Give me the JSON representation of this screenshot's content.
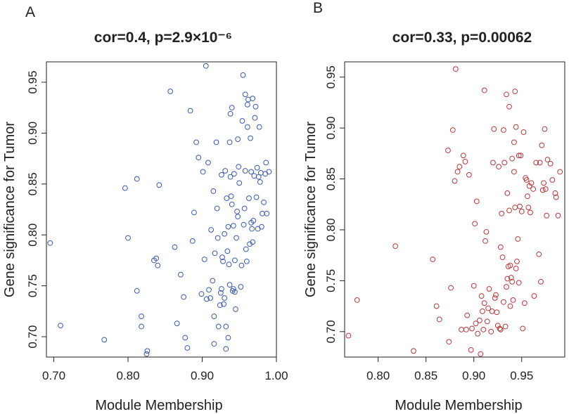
{
  "chart_data": [
    {
      "panel_label": "A",
      "type": "scatter",
      "title": "cor=0.4, p=2.9×10⁻⁶",
      "xlabel": "Module Membership",
      "ylabel": "Gene significance for Tumor",
      "xlim": [
        0.69,
        1.0
      ],
      "ylim": [
        0.68,
        0.97
      ],
      "xticks": [
        0.7,
        0.8,
        0.9,
        1.0
      ],
      "xtick_labels": [
        "0.70",
        "0.80",
        "0.90",
        "1.00"
      ],
      "yticks": [
        0.7,
        0.75,
        0.8,
        0.85,
        0.9,
        0.95
      ],
      "ytick_labels": [
        "0.70",
        "0.75",
        "0.80",
        "0.85",
        "0.90",
        "0.95"
      ],
      "marker_color": "#3a5ba8",
      "points": [
        [
          0.695,
          0.792
        ],
        [
          0.709,
          0.711
        ],
        [
          0.768,
          0.697
        ],
        [
          0.796,
          0.846
        ],
        [
          0.8,
          0.797
        ],
        [
          0.812,
          0.855
        ],
        [
          0.812,
          0.745
        ],
        [
          0.818,
          0.72
        ],
        [
          0.818,
          0.71
        ],
        [
          0.825,
          0.683
        ],
        [
          0.826,
          0.686
        ],
        [
          0.835,
          0.775
        ],
        [
          0.838,
          0.777
        ],
        [
          0.84,
          0.77
        ],
        [
          0.842,
          0.849
        ],
        [
          0.857,
          0.941
        ],
        [
          0.863,
          0.788
        ],
        [
          0.866,
          0.713
        ],
        [
          0.871,
          0.761
        ],
        [
          0.875,
          0.739
        ],
        [
          0.877,
          0.699
        ],
        [
          0.88,
          0.689
        ],
        [
          0.884,
          0.922
        ],
        [
          0.887,
          0.794
        ],
        [
          0.889,
          0.822
        ],
        [
          0.892,
          0.891
        ],
        [
          0.895,
          0.876
        ],
        [
          0.899,
          0.742
        ],
        [
          0.901,
          0.862
        ],
        [
          0.903,
          0.776
        ],
        [
          0.905,
          0.966
        ],
        [
          0.906,
          0.737
        ],
        [
          0.908,
          0.871
        ],
        [
          0.909,
          0.746
        ],
        [
          0.911,
          0.738
        ],
        [
          0.912,
          0.805
        ],
        [
          0.914,
          0.755
        ],
        [
          0.915,
          0.843
        ],
        [
          0.916,
          0.693
        ],
        [
          0.916,
          0.72
        ],
        [
          0.917,
          0.782
        ],
        [
          0.919,
          0.891
        ],
        [
          0.92,
          0.826
        ],
        [
          0.921,
          0.797
        ],
        [
          0.922,
          0.71
        ],
        [
          0.924,
          0.731
        ],
        [
          0.925,
          0.743
        ],
        [
          0.926,
          0.747
        ],
        [
          0.926,
          0.859
        ],
        [
          0.927,
          0.778
        ],
        [
          0.928,
          0.774
        ],
        [
          0.929,
          0.732
        ],
        [
          0.93,
          0.801
        ],
        [
          0.93,
          0.738
        ],
        [
          0.931,
          0.863
        ],
        [
          0.932,
          0.71
        ],
        [
          0.932,
          0.688
        ],
        [
          0.933,
          0.836
        ],
        [
          0.934,
          0.784
        ],
        [
          0.935,
          0.699
        ],
        [
          0.935,
          0.808
        ],
        [
          0.936,
          0.771
        ],
        [
          0.937,
          0.751
        ],
        [
          0.937,
          0.891
        ],
        [
          0.938,
          0.857
        ],
        [
          0.938,
          0.919
        ],
        [
          0.939,
          0.838
        ],
        [
          0.94,
          0.925
        ],
        [
          0.94,
          0.83
        ],
        [
          0.941,
          0.745
        ],
        [
          0.942,
          0.809
        ],
        [
          0.942,
          0.747
        ],
        [
          0.943,
          0.86
        ],
        [
          0.944,
          0.744
        ],
        [
          0.944,
          0.775
        ],
        [
          0.945,
          0.727
        ],
        [
          0.946,
          0.797
        ],
        [
          0.947,
          0.823
        ],
        [
          0.948,
          0.818
        ],
        [
          0.948,
          0.894
        ],
        [
          0.949,
          0.867
        ],
        [
          0.95,
          0.851
        ],
        [
          0.952,
          0.749
        ],
        [
          0.953,
          0.77
        ],
        [
          0.954,
          0.912
        ],
        [
          0.955,
          0.957
        ],
        [
          0.956,
          0.81
        ],
        [
          0.957,
          0.826
        ],
        [
          0.958,
          0.938
        ],
        [
          0.958,
          0.863
        ],
        [
          0.959,
          0.786
        ],
        [
          0.96,
          0.774
        ],
        [
          0.961,
          0.928
        ],
        [
          0.961,
          0.906
        ],
        [
          0.962,
          0.933
        ],
        [
          0.963,
          0.836
        ],
        [
          0.964,
          0.791
        ],
        [
          0.965,
          0.895
        ],
        [
          0.966,
          0.862
        ],
        [
          0.966,
          0.812
        ],
        [
          0.967,
          0.806
        ],
        [
          0.968,
          0.934
        ],
        [
          0.968,
          0.793
        ],
        [
          0.969,
          0.814
        ],
        [
          0.97,
          0.858
        ],
        [
          0.971,
          0.915
        ],
        [
          0.972,
          0.926
        ],
        [
          0.973,
          0.837
        ],
        [
          0.974,
          0.866
        ],
        [
          0.975,
          0.806
        ],
        [
          0.976,
          0.857
        ],
        [
          0.977,
          0.906
        ],
        [
          0.978,
          0.852
        ],
        [
          0.979,
          0.861
        ],
        [
          0.98,
          0.808
        ],
        [
          0.981,
          0.821
        ],
        [
          0.983,
          0.832
        ],
        [
          0.985,
          0.86
        ],
        [
          0.986,
          0.871
        ],
        [
          0.987,
          0.821
        ],
        [
          0.99,
          0.862
        ]
      ]
    },
    {
      "panel_label": "B",
      "type": "scatter",
      "title": "cor=0.33, p=0.00062",
      "xlabel": "Module Membership",
      "ylabel": "Gene significance for Tumor",
      "xlim": [
        0.765,
        0.995
      ],
      "ylim": [
        0.675,
        0.965
      ],
      "xticks": [
        0.8,
        0.85,
        0.9,
        0.95
      ],
      "xtick_labels": [
        "0.80",
        "0.85",
        "0.90",
        "0.95"
      ],
      "yticks": [
        0.7,
        0.75,
        0.8,
        0.85,
        0.9,
        0.95
      ],
      "ytick_labels": [
        "0.70",
        "0.75",
        "0.80",
        "0.85",
        "0.90",
        "0.95"
      ],
      "marker_color": "#b03a3a",
      "points": [
        [
          0.769,
          0.696
        ],
        [
          0.778,
          0.731
        ],
        [
          0.818,
          0.784
        ],
        [
          0.837,
          0.681
        ],
        [
          0.857,
          0.771
        ],
        [
          0.861,
          0.725
        ],
        [
          0.864,
          0.712
        ],
        [
          0.873,
          0.878
        ],
        [
          0.874,
          0.69
        ],
        [
          0.876,
          0.743
        ],
        [
          0.878,
          0.898
        ],
        [
          0.88,
          0.848
        ],
        [
          0.881,
          0.958
        ],
        [
          0.883,
          0.857
        ],
        [
          0.885,
          0.862
        ],
        [
          0.887,
          0.702
        ],
        [
          0.889,
          0.873
        ],
        [
          0.891,
          0.867
        ],
        [
          0.892,
          0.702
        ],
        [
          0.893,
          0.716
        ],
        [
          0.895,
          0.854
        ],
        [
          0.897,
          0.682
        ],
        [
          0.898,
          0.703
        ],
        [
          0.9,
          0.745
        ],
        [
          0.901,
          0.806
        ],
        [
          0.902,
          0.708
        ],
        [
          0.903,
          0.828
        ],
        [
          0.904,
          0.698
        ],
        [
          0.906,
          0.711
        ],
        [
          0.907,
          0.678
        ],
        [
          0.908,
          0.735
        ],
        [
          0.909,
          0.72
        ],
        [
          0.91,
          0.702
        ],
        [
          0.911,
          0.937
        ],
        [
          0.911,
          0.728
        ],
        [
          0.912,
          0.789
        ],
        [
          0.913,
          0.798
        ],
        [
          0.914,
          0.71
        ],
        [
          0.915,
          0.723
        ],
        [
          0.916,
          0.742
        ],
        [
          0.918,
          0.7
        ],
        [
          0.919,
          0.72
        ],
        [
          0.92,
          0.866
        ],
        [
          0.921,
          0.899
        ],
        [
          0.922,
          0.733
        ],
        [
          0.923,
          0.736
        ],
        [
          0.924,
          0.719
        ],
        [
          0.925,
          0.706
        ],
        [
          0.926,
          0.862
        ],
        [
          0.927,
          0.703
        ],
        [
          0.928,
          0.783
        ],
        [
          0.928,
          0.702
        ],
        [
          0.929,
          0.816
        ],
        [
          0.93,
          0.773
        ],
        [
          0.931,
          0.898
        ],
        [
          0.931,
          0.729
        ],
        [
          0.932,
          0.866
        ],
        [
          0.933,
          0.705
        ],
        [
          0.934,
          0.933
        ],
        [
          0.934,
          0.744
        ],
        [
          0.935,
          0.836
        ],
        [
          0.935,
          0.752
        ],
        [
          0.936,
          0.764
        ],
        [
          0.937,
          0.921
        ],
        [
          0.937,
          0.819
        ],
        [
          0.938,
          0.765
        ],
        [
          0.938,
          0.725
        ],
        [
          0.939,
          0.753
        ],
        [
          0.94,
          0.87
        ],
        [
          0.94,
          0.749
        ],
        [
          0.941,
          0.731
        ],
        [
          0.942,
          0.857
        ],
        [
          0.942,
          0.886
        ],
        [
          0.943,
          0.936
        ],
        [
          0.943,
          0.822
        ],
        [
          0.944,
          0.901
        ],
        [
          0.944,
          0.762
        ],
        [
          0.945,
          0.769
        ],
        [
          0.946,
          0.791
        ],
        [
          0.947,
          0.873
        ],
        [
          0.947,
          0.748
        ],
        [
          0.948,
          0.823
        ],
        [
          0.949,
          0.873
        ],
        [
          0.95,
          0.818
        ],
        [
          0.951,
          0.703
        ],
        [
          0.952,
          0.896
        ],
        [
          0.953,
          0.728
        ],
        [
          0.954,
          0.851
        ],
        [
          0.955,
          0.849
        ],
        [
          0.956,
          0.833
        ],
        [
          0.957,
          0.822
        ],
        [
          0.958,
          0.843
        ],
        [
          0.959,
          0.817
        ],
        [
          0.96,
          0.846
        ],
        [
          0.962,
          0.84
        ],
        [
          0.963,
          0.735
        ],
        [
          0.965,
          0.866
        ],
        [
          0.968,
          0.776
        ],
        [
          0.969,
          0.866
        ],
        [
          0.97,
          0.749
        ],
        [
          0.971,
          0.883
        ],
        [
          0.972,
          0.839
        ],
        [
          0.973,
          0.846
        ],
        [
          0.974,
          0.899
        ],
        [
          0.975,
          0.84
        ],
        [
          0.976,
          0.814
        ],
        [
          0.977,
          0.869
        ],
        [
          0.98,
          0.865
        ],
        [
          0.982,
          0.849
        ],
        [
          0.985,
          0.836
        ],
        [
          0.986,
          0.832
        ],
        [
          0.988,
          0.814
        ],
        [
          0.99,
          0.857
        ]
      ]
    }
  ]
}
